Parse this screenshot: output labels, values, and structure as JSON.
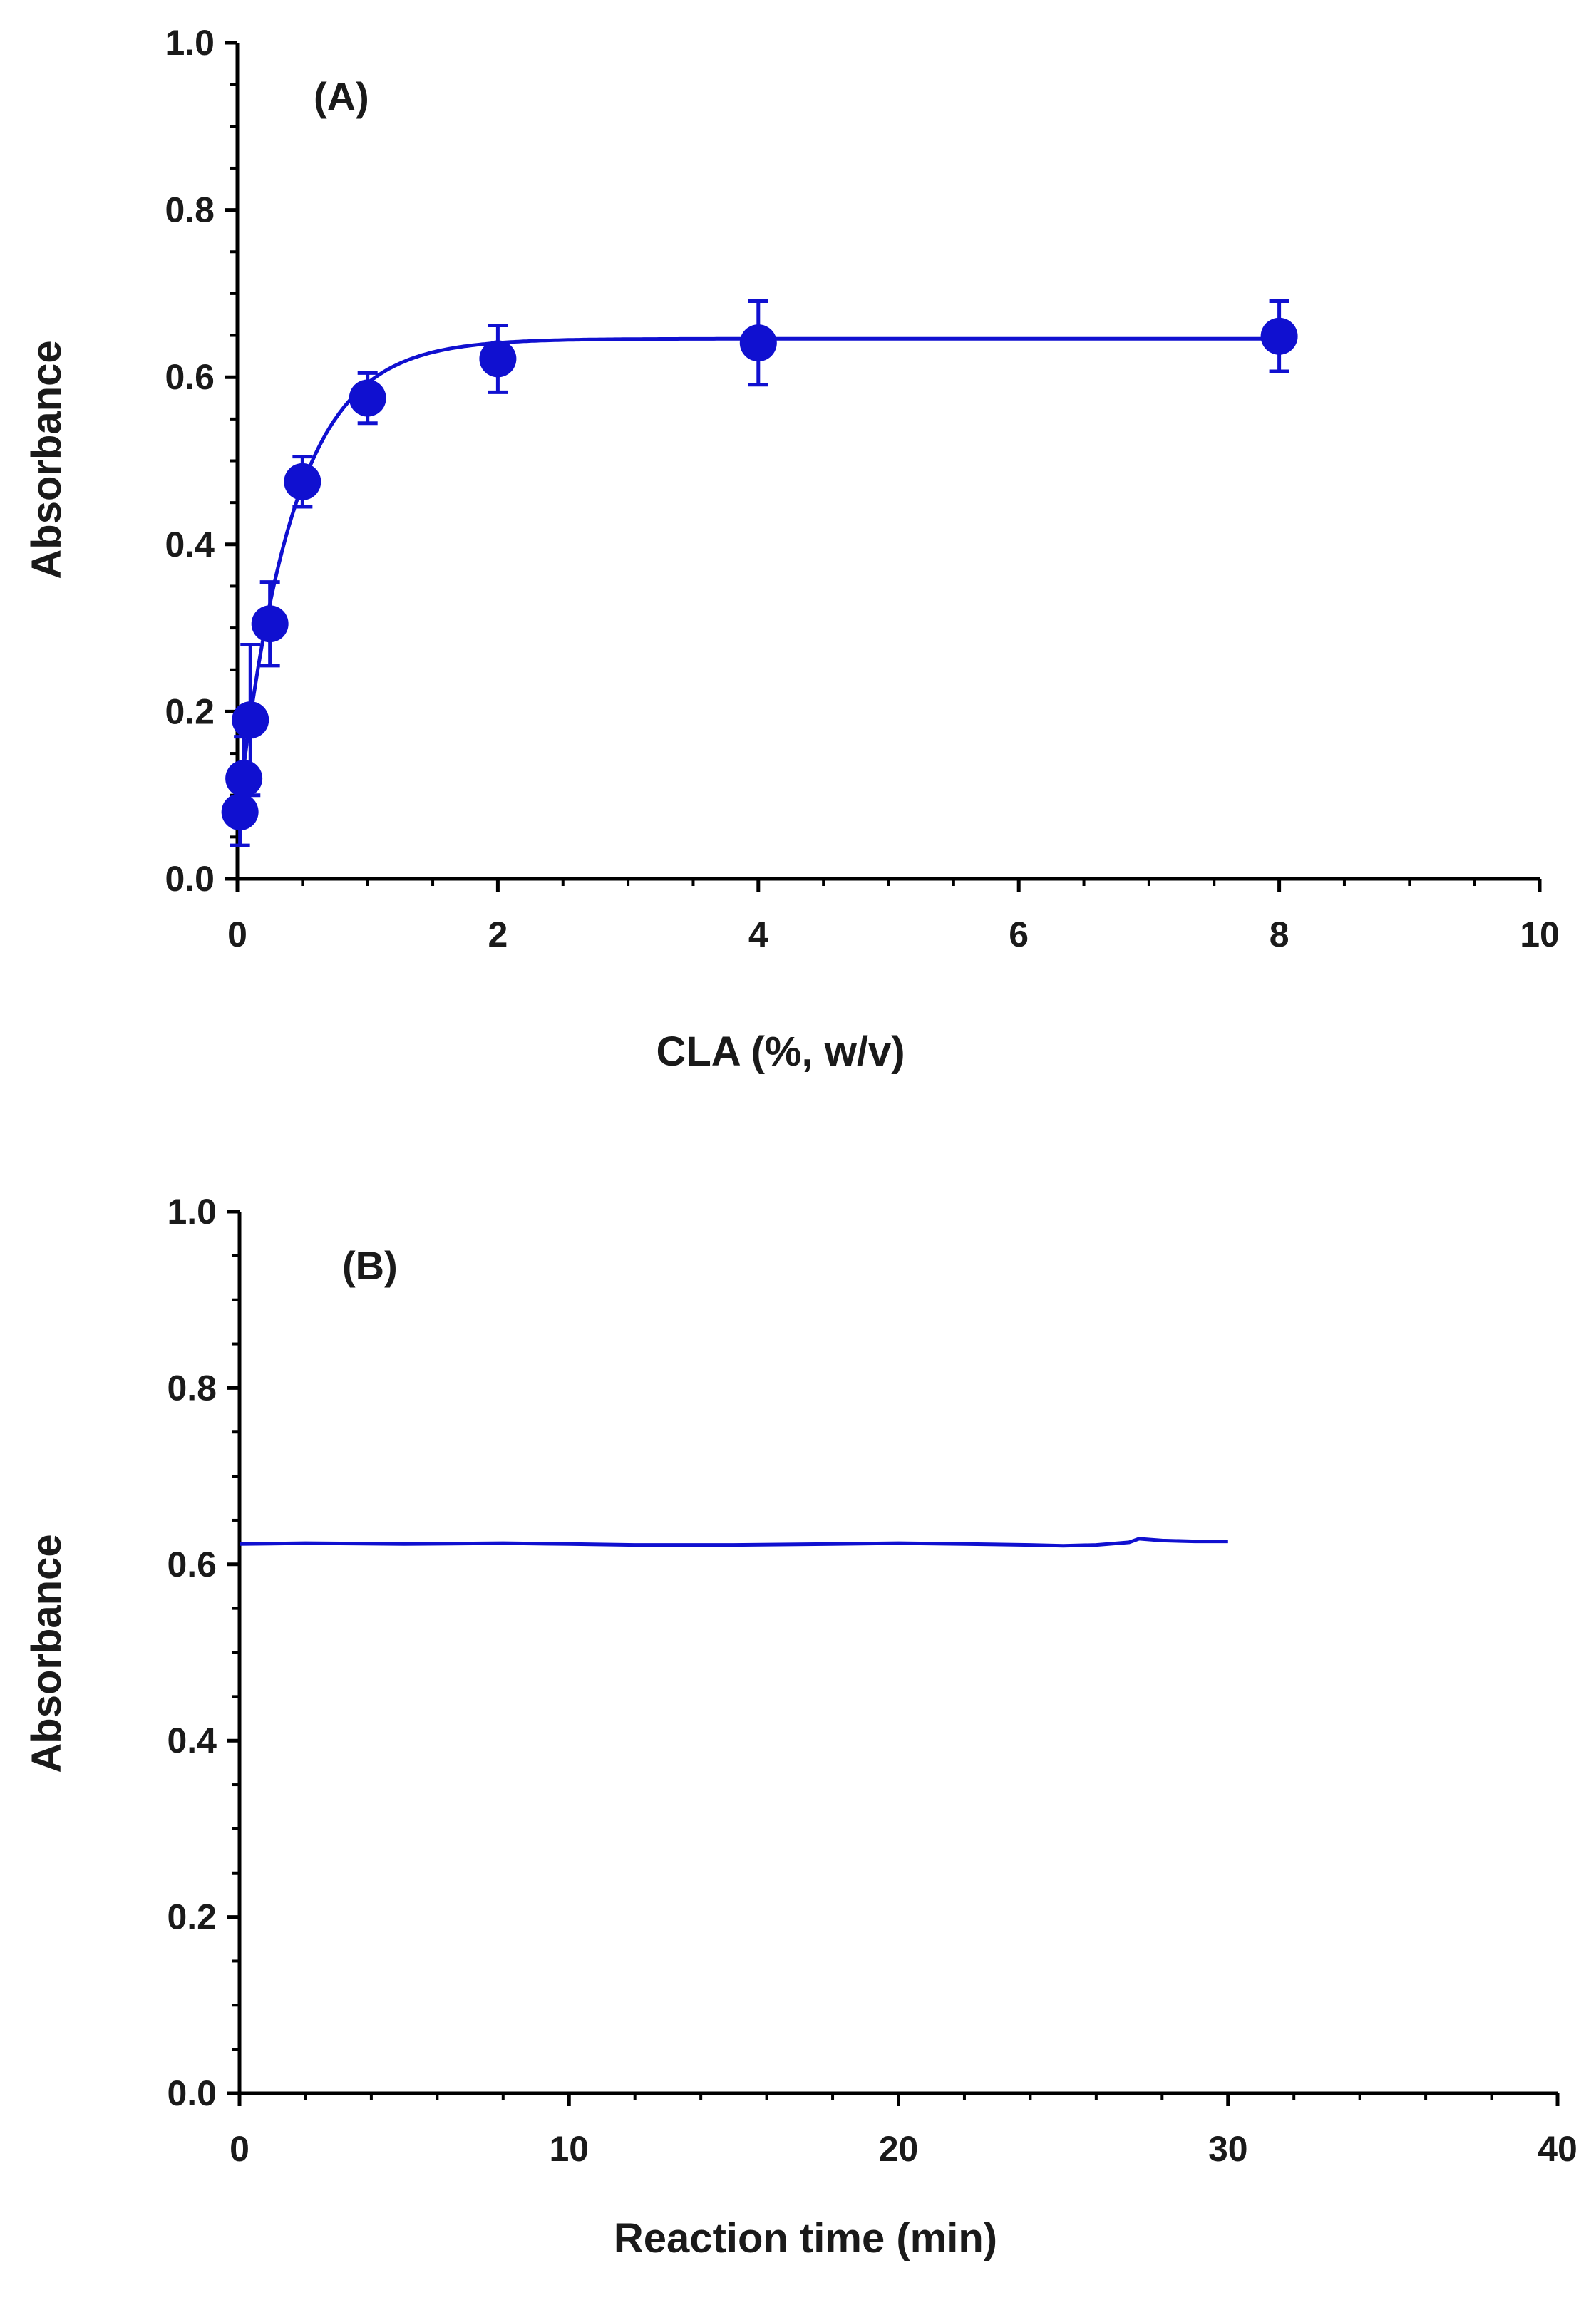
{
  "chart_data": [
    {
      "type": "scatter",
      "panel_label": "(A)",
      "xlabel": "CLA (%, w/v)",
      "ylabel": "Absorbance",
      "xlim": [
        0,
        10
      ],
      "ylim": [
        0,
        1.0
      ],
      "x_ticks": [
        "0",
        "2",
        "4",
        "6",
        "8",
        "10"
      ],
      "y_ticks": [
        "0.0",
        "0.2",
        "0.4",
        "0.6",
        "0.8",
        "1.0"
      ],
      "x_tick_values": [
        0,
        2,
        4,
        6,
        8,
        10
      ],
      "y_tick_values": [
        0,
        0.2,
        0.4,
        0.6,
        0.8,
        1.0
      ],
      "grid": false,
      "series": [
        {
          "color": "#1010d0",
          "marker": "circle",
          "error_bars": true,
          "fitted_curve": true,
          "x": [
            0.02,
            0.05,
            0.1,
            0.25,
            0.5,
            1,
            2,
            4,
            8
          ],
          "y": [
            0.08,
            0.12,
            0.19,
            0.305,
            0.475,
            0.575,
            0.622,
            0.641,
            0.649
          ],
          "error": [
            0.04,
            0.05,
            0.09,
            0.05,
            0.03,
            0.03,
            0.04,
            0.05,
            0.042
          ]
        }
      ]
    },
    {
      "type": "line",
      "panel_label": "(B)",
      "xlabel": "Reaction time (min)",
      "ylabel": "Absorbance",
      "xlim": [
        0,
        40
      ],
      "ylim": [
        0,
        1.0
      ],
      "x_ticks": [
        "0",
        "10",
        "20",
        "30",
        "40"
      ],
      "y_ticks": [
        "0.0",
        "0.2",
        "0.4",
        "0.6",
        "0.8",
        "1.0"
      ],
      "x_tick_values": [
        0,
        10,
        20,
        30,
        40
      ],
      "y_tick_values": [
        0,
        0.2,
        0.4,
        0.6,
        0.8,
        1.0
      ],
      "grid": false,
      "series": [
        {
          "color": "#1010d0",
          "x": [
            0,
            2,
            5,
            8,
            10,
            12,
            15,
            18,
            20,
            22,
            24,
            25,
            26,
            27,
            27.3,
            28,
            29,
            30
          ],
          "y": [
            0.623,
            0.624,
            0.623,
            0.624,
            0.623,
            0.622,
            0.622,
            0.623,
            0.624,
            0.623,
            0.622,
            0.621,
            0.622,
            0.625,
            0.629,
            0.627,
            0.626,
            0.626
          ]
        }
      ]
    }
  ]
}
